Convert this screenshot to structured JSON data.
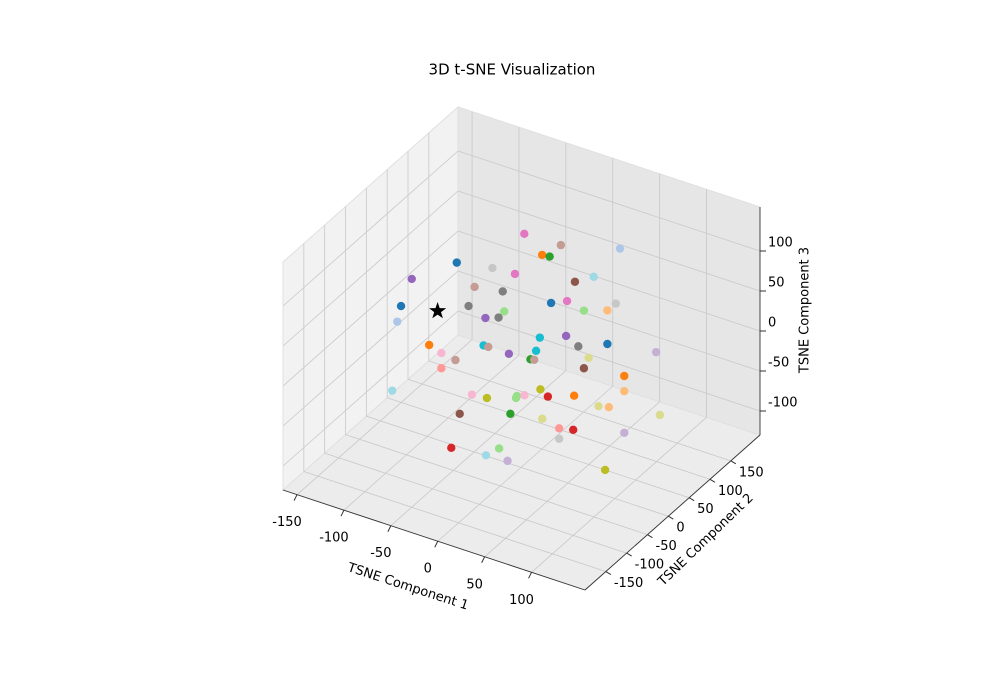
{
  "chart_data": {
    "type": "scatter3d",
    "title": "3D t-SNE Visualization",
    "xlabel": "TSNE Component 1",
    "ylabel": "TSNE Component 2",
    "zlabel": "TSNE Component 3",
    "xlim": [
      -165,
      157
    ],
    "ylim": [
      -200,
      220
    ],
    "zlim": [
      -130,
      155
    ],
    "xticks": [
      -150,
      -100,
      -50,
      0,
      50,
      100
    ],
    "yticks": [
      -150,
      -100,
      -50,
      0,
      50,
      100,
      150
    ],
    "zticks": [
      -100,
      -50,
      0,
      50,
      100
    ],
    "grid": true,
    "series": [
      {
        "marker": "o",
        "x": [
          -41,
          -2,
          -22,
          -14,
          61,
          -113,
          -75,
          -51,
          -161,
          33,
          13,
          -94,
          -64,
          -128,
          -56,
          32,
          49,
          101,
          -18,
          67,
          92,
          -132,
          -38,
          -24,
          20,
          48,
          -98,
          -40,
          -35,
          61,
          92,
          16,
          -13,
          -85,
          144,
          -70,
          10,
          14,
          72,
          -85,
          67,
          110,
          -93,
          65,
          110,
          -8,
          40,
          39,
          48,
          73,
          101,
          8,
          127,
          138,
          148,
          -21,
          33,
          67,
          85,
          100,
          110,
          85,
          -30,
          21,
          7,
          30,
          134
        ],
        "y": [
          100,
          100,
          100,
          100,
          100,
          100,
          100,
          100,
          100,
          100,
          100,
          100,
          100,
          0,
          0,
          0,
          0,
          0,
          0,
          0,
          0,
          0,
          0,
          0,
          0,
          0,
          0,
          0,
          0,
          0,
          0,
          0,
          0,
          0,
          0,
          0,
          0,
          0,
          0,
          0,
          0,
          0,
          -100,
          -100,
          0,
          -100,
          -100,
          -100,
          -100,
          -100,
          -100,
          -100,
          -100,
          -100,
          0,
          -100,
          -100,
          -100,
          -100,
          -100,
          0,
          -100,
          -100,
          -100,
          -100,
          -100,
          -100
        ],
        "z": [
          100,
          101,
          81,
          82,
          121,
          36,
          44,
          46,
          -3,
          75,
          61,
          13,
          19,
          22,
          50,
          88,
          97,
          114,
          58,
          92,
          102,
          1,
          42,
          48,
          40,
          53,
          -15,
          7,
          7,
          45,
          60,
          22,
          7,
          -20,
          70,
          -23,
          9,
          10,
          35,
          -39,
          20,
          27,
          -24,
          39,
          8,
          4,
          21,
          18,
          25,
          33,
          45,
          6,
          42,
          45,
          -7,
          -25,
          -4,
          3,
          -2,
          2,
          -44,
          -15,
          -71,
          -52,
          -66,
          -64,
          -35
        ],
        "colors": [
          "#e377c2",
          "#c49c94",
          "#ff7f0e",
          "#2ca02c",
          "#aec7e8",
          "#1f77b4",
          "#c7c7c7",
          "#e377c2",
          "#9467bd",
          "#9edae5",
          "#8c564b",
          "#c49c94",
          "#7f7f7f",
          "#1f77b4",
          "#7f7f7f",
          "#1f77b4",
          "#e377c2",
          "#c7c7c7",
          "#98df8a",
          "#98df8a",
          "#ffbb78",
          "#aec7e8",
          "#9467bd",
          "#7f7f7f",
          "#17becf",
          "#9467bd",
          "#ff7f0e",
          "#17becf",
          "#c49c94",
          "#7f7f7f",
          "#1f77b4",
          "#17becf",
          "#9467bd",
          "#f7b6d2",
          "#c5b0d5",
          "#c49c94",
          "#2ca02c",
          "#c49c94",
          "#dbdb8d",
          "#ff9896",
          "#8c564b",
          "#ff7f0e",
          "#9edae5",
          "#bcbd22",
          "#ffbb78",
          "#f7b6d2",
          "#98df8a",
          "#98df8a",
          "#f7b6d2",
          "#d62728",
          "#ff7f0e",
          "#bcbd22",
          "#dbdb8d",
          "#ffbb78",
          "#dbdb8d",
          "#8c564b",
          "#2ca02c",
          "#dbdb8d",
          "#ff9896",
          "#d62728",
          "#c5b0d5",
          "#c7c7c7",
          "#d62728",
          "#98df8a",
          "#9edae5",
          "#c5b0d5",
          "#bcbd22"
        ]
      },
      {
        "marker": "*",
        "x": [
          -89
        ],
        "y": [
          0
        ],
        "z": [
          31
        ],
        "color": "#000000"
      }
    ]
  }
}
